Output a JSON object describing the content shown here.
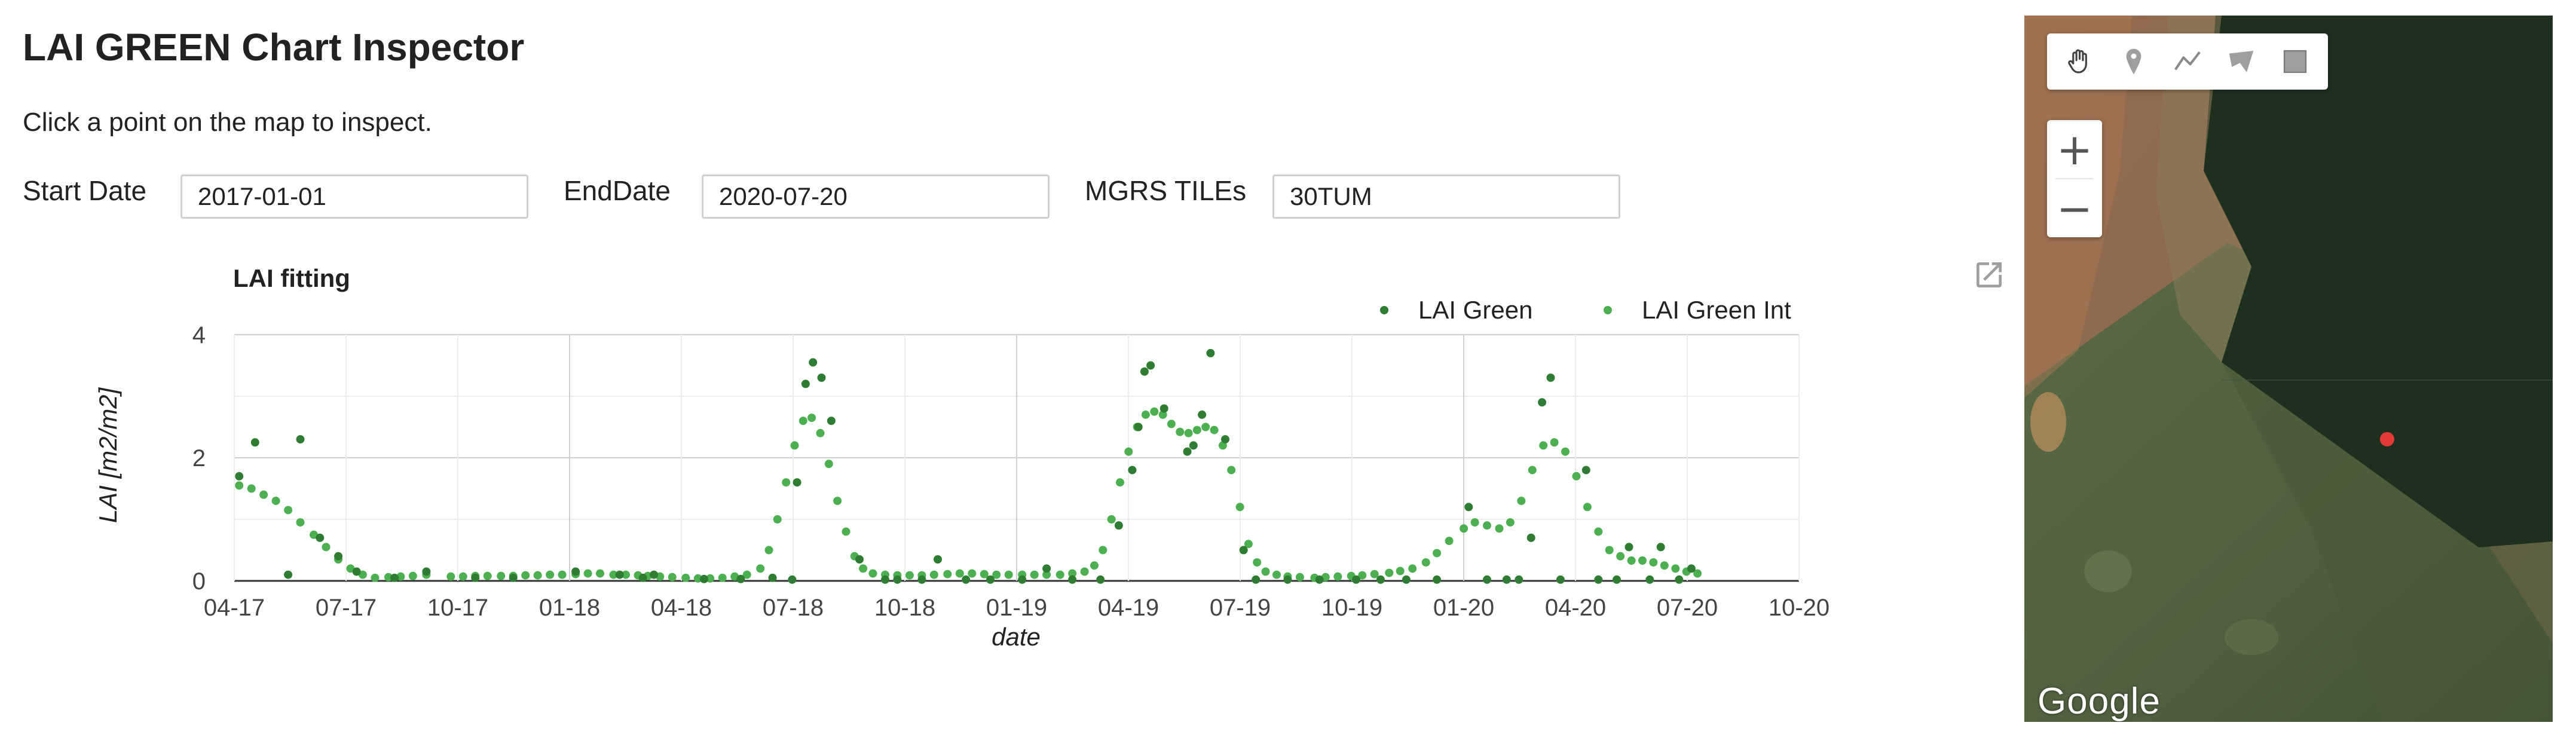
{
  "header": {
    "title": "LAI GREEN Chart Inspector",
    "instruction": "Click a point on the map to inspect."
  },
  "form": {
    "start_label": "Start Date",
    "start_value": "2017-01-01",
    "end_label": "EndDate",
    "end_value": "2020-07-20",
    "tiles_label": "MGRS TILEs",
    "tiles_value": "30TUM"
  },
  "map": {
    "logo": "Google",
    "zoom_in_label": "+",
    "zoom_out_label": "−",
    "tools": [
      "hand-icon",
      "marker-icon",
      "line-icon",
      "polygon-icon",
      "rectangle-icon"
    ],
    "marker_color": "#e53935"
  },
  "chart_data": {
    "type": "scatter",
    "title": "LAI fitting",
    "xlabel": "date",
    "ylabel": "LAI [m2/m2]",
    "ylim": [
      0,
      4
    ],
    "yticks": [
      0,
      2,
      4
    ],
    "grid": true,
    "legend_position": "top-right",
    "x_range": [
      "2017-04-01",
      "2020-10-01"
    ],
    "xtick_labels": [
      "04-17",
      "07-17",
      "10-17",
      "01-18",
      "04-18",
      "07-18",
      "10-18",
      "01-19",
      "04-19",
      "07-19",
      "10-19",
      "01-20",
      "04-20",
      "07-20",
      "10-20"
    ],
    "series": [
      {
        "name": "LAI Green",
        "color": "#2e7d32",
        "points": [
          [
            "2017-04-05",
            1.7
          ],
          [
            "2017-04-18",
            2.25
          ],
          [
            "2017-05-15",
            0.1
          ],
          [
            "2017-05-25",
            2.3
          ],
          [
            "2017-06-10",
            0.7
          ],
          [
            "2017-06-25",
            0.4
          ],
          [
            "2017-07-10",
            0.15
          ],
          [
            "2017-08-10",
            0.05
          ],
          [
            "2017-09-05",
            0.15
          ],
          [
            "2017-10-15",
            0.05
          ],
          [
            "2017-11-15",
            0.05
          ],
          [
            "2018-01-05",
            0.15
          ],
          [
            "2018-02-10",
            0.1
          ],
          [
            "2018-03-01",
            0.05
          ],
          [
            "2018-03-10",
            0.1
          ],
          [
            "2018-04-20",
            0.03
          ],
          [
            "2018-05-20",
            0.03
          ],
          [
            "2018-06-15",
            0.05
          ],
          [
            "2018-07-01",
            0.02
          ],
          [
            "2018-07-05",
            1.6
          ],
          [
            "2018-07-12",
            3.2
          ],
          [
            "2018-07-18",
            3.55
          ],
          [
            "2018-07-25",
            3.3
          ],
          [
            "2018-08-02",
            2.6
          ],
          [
            "2018-08-25",
            0.35
          ],
          [
            "2018-09-15",
            0.02
          ],
          [
            "2018-09-25",
            0.02
          ],
          [
            "2018-10-15",
            0.02
          ],
          [
            "2018-10-28",
            0.35
          ],
          [
            "2018-11-20",
            0.02
          ],
          [
            "2018-12-10",
            0.02
          ],
          [
            "2019-01-05",
            0.02
          ],
          [
            "2019-01-25",
            0.2
          ],
          [
            "2019-02-15",
            0.02
          ],
          [
            "2019-03-10",
            0.02
          ],
          [
            "2019-03-25",
            0.9
          ],
          [
            "2019-04-05",
            1.8
          ],
          [
            "2019-04-10",
            2.5
          ],
          [
            "2019-04-15",
            3.4
          ],
          [
            "2019-04-20",
            3.5
          ],
          [
            "2019-05-01",
            2.8
          ],
          [
            "2019-05-20",
            2.1
          ],
          [
            "2019-05-25",
            2.2
          ],
          [
            "2019-06-01",
            2.7
          ],
          [
            "2019-06-08",
            3.7
          ],
          [
            "2019-06-20",
            2.3
          ],
          [
            "2019-07-05",
            0.5
          ],
          [
            "2019-07-15",
            0.02
          ],
          [
            "2019-08-10",
            0.02
          ],
          [
            "2019-09-05",
            0.02
          ],
          [
            "2019-10-05",
            0.02
          ],
          [
            "2019-10-25",
            0.02
          ],
          [
            "2019-11-15",
            0.02
          ],
          [
            "2019-12-10",
            0.02
          ],
          [
            "2020-01-05",
            1.2
          ],
          [
            "2020-01-20",
            0.02
          ],
          [
            "2020-02-05",
            0.02
          ],
          [
            "2020-02-15",
            0.02
          ],
          [
            "2020-02-25",
            0.7
          ],
          [
            "2020-03-05",
            2.9
          ],
          [
            "2020-03-12",
            3.3
          ],
          [
            "2020-03-20",
            0.02
          ],
          [
            "2020-04-10",
            1.8
          ],
          [
            "2020-04-20",
            0.02
          ],
          [
            "2020-05-05",
            0.02
          ],
          [
            "2020-05-15",
            0.55
          ],
          [
            "2020-06-01",
            0.02
          ],
          [
            "2020-06-10",
            0.55
          ],
          [
            "2020-06-25",
            0.02
          ],
          [
            "2020-07-05",
            0.2
          ]
        ]
      },
      {
        "name": "LAI Green Int",
        "color": "#4caf50",
        "points": [
          [
            "2017-04-05",
            1.55
          ],
          [
            "2017-04-15",
            1.5
          ],
          [
            "2017-04-25",
            1.4
          ],
          [
            "2017-05-05",
            1.3
          ],
          [
            "2017-05-15",
            1.15
          ],
          [
            "2017-05-25",
            0.95
          ],
          [
            "2017-06-05",
            0.75
          ],
          [
            "2017-06-15",
            0.55
          ],
          [
            "2017-06-25",
            0.35
          ],
          [
            "2017-07-05",
            0.2
          ],
          [
            "2017-07-15",
            0.1
          ],
          [
            "2017-07-25",
            0.05
          ],
          [
            "2017-08-05",
            0.06
          ],
          [
            "2017-08-15",
            0.07
          ],
          [
            "2017-08-25",
            0.08
          ],
          [
            "2017-09-05",
            0.1
          ],
          [
            "2017-09-25",
            0.07
          ],
          [
            "2017-10-05",
            0.07
          ],
          [
            "2017-10-15",
            0.08
          ],
          [
            "2017-10-25",
            0.08
          ],
          [
            "2017-11-05",
            0.08
          ],
          [
            "2017-11-15",
            0.08
          ],
          [
            "2017-11-25",
            0.09
          ],
          [
            "2017-12-05",
            0.09
          ],
          [
            "2017-12-15",
            0.1
          ],
          [
            "2017-12-25",
            0.1
          ],
          [
            "2018-01-05",
            0.11
          ],
          [
            "2018-01-15",
            0.12
          ],
          [
            "2018-01-25",
            0.12
          ],
          [
            "2018-02-05",
            0.1
          ],
          [
            "2018-02-15",
            0.1
          ],
          [
            "2018-02-25",
            0.09
          ],
          [
            "2018-03-05",
            0.08
          ],
          [
            "2018-03-15",
            0.07
          ],
          [
            "2018-03-25",
            0.06
          ],
          [
            "2018-04-05",
            0.05
          ],
          [
            "2018-04-15",
            0.04
          ],
          [
            "2018-04-25",
            0.04
          ],
          [
            "2018-05-05",
            0.05
          ],
          [
            "2018-05-15",
            0.07
          ],
          [
            "2018-05-25",
            0.1
          ],
          [
            "2018-06-05",
            0.2
          ],
          [
            "2018-06-12",
            0.5
          ],
          [
            "2018-06-19",
            1.0
          ],
          [
            "2018-06-26",
            1.6
          ],
          [
            "2018-07-03",
            2.2
          ],
          [
            "2018-07-10",
            2.6
          ],
          [
            "2018-07-17",
            2.65
          ],
          [
            "2018-07-24",
            2.4
          ],
          [
            "2018-07-31",
            1.9
          ],
          [
            "2018-08-07",
            1.3
          ],
          [
            "2018-08-14",
            0.8
          ],
          [
            "2018-08-21",
            0.4
          ],
          [
            "2018-08-28",
            0.2
          ],
          [
            "2018-09-05",
            0.12
          ],
          [
            "2018-09-15",
            0.1
          ],
          [
            "2018-09-25",
            0.09
          ],
          [
            "2018-10-05",
            0.09
          ],
          [
            "2018-10-15",
            0.09
          ],
          [
            "2018-10-25",
            0.1
          ],
          [
            "2018-11-05",
            0.11
          ],
          [
            "2018-11-15",
            0.12
          ],
          [
            "2018-11-25",
            0.12
          ],
          [
            "2018-12-05",
            0.11
          ],
          [
            "2018-12-15",
            0.1
          ],
          [
            "2018-12-25",
            0.1
          ],
          [
            "2019-01-05",
            0.1
          ],
          [
            "2019-01-15",
            0.1
          ],
          [
            "2019-01-25",
            0.1
          ],
          [
            "2019-02-05",
            0.1
          ],
          [
            "2019-02-15",
            0.12
          ],
          [
            "2019-02-25",
            0.15
          ],
          [
            "2019-03-05",
            0.25
          ],
          [
            "2019-03-12",
            0.5
          ],
          [
            "2019-03-19",
            1.0
          ],
          [
            "2019-03-26",
            1.6
          ],
          [
            "2019-04-02",
            2.1
          ],
          [
            "2019-04-09",
            2.5
          ],
          [
            "2019-04-16",
            2.7
          ],
          [
            "2019-04-23",
            2.75
          ],
          [
            "2019-04-30",
            2.7
          ],
          [
            "2019-05-07",
            2.55
          ],
          [
            "2019-05-14",
            2.42
          ],
          [
            "2019-05-21",
            2.4
          ],
          [
            "2019-05-28",
            2.45
          ],
          [
            "2019-06-04",
            2.5
          ],
          [
            "2019-06-11",
            2.45
          ],
          [
            "2019-06-18",
            2.2
          ],
          [
            "2019-06-25",
            1.8
          ],
          [
            "2019-07-02",
            1.2
          ],
          [
            "2019-07-09",
            0.6
          ],
          [
            "2019-07-16",
            0.3
          ],
          [
            "2019-07-23",
            0.15
          ],
          [
            "2019-08-01",
            0.1
          ],
          [
            "2019-08-10",
            0.07
          ],
          [
            "2019-08-20",
            0.06
          ],
          [
            "2019-09-01",
            0.05
          ],
          [
            "2019-09-10",
            0.06
          ],
          [
            "2019-09-20",
            0.07
          ],
          [
            "2019-10-01",
            0.08
          ],
          [
            "2019-10-10",
            0.09
          ],
          [
            "2019-10-20",
            0.11
          ],
          [
            "2019-11-01",
            0.13
          ],
          [
            "2019-11-10",
            0.16
          ],
          [
            "2019-11-20",
            0.2
          ],
          [
            "2019-12-01",
            0.3
          ],
          [
            "2019-12-10",
            0.45
          ],
          [
            "2019-12-20",
            0.65
          ],
          [
            "2020-01-01",
            0.85
          ],
          [
            "2020-01-10",
            0.95
          ],
          [
            "2020-01-20",
            0.9
          ],
          [
            "2020-01-30",
            0.85
          ],
          [
            "2020-02-08",
            0.95
          ],
          [
            "2020-02-17",
            1.3
          ],
          [
            "2020-02-26",
            1.8
          ],
          [
            "2020-03-06",
            2.2
          ],
          [
            "2020-03-15",
            2.25
          ],
          [
            "2020-03-24",
            2.1
          ],
          [
            "2020-04-02",
            1.7
          ],
          [
            "2020-04-11",
            1.2
          ],
          [
            "2020-04-20",
            0.8
          ],
          [
            "2020-04-29",
            0.5
          ],
          [
            "2020-05-08",
            0.4
          ],
          [
            "2020-05-17",
            0.33
          ],
          [
            "2020-05-26",
            0.33
          ],
          [
            "2020-06-04",
            0.3
          ],
          [
            "2020-06-13",
            0.25
          ],
          [
            "2020-06-22",
            0.2
          ],
          [
            "2020-07-01",
            0.15
          ],
          [
            "2020-07-10",
            0.12
          ]
        ]
      }
    ]
  }
}
